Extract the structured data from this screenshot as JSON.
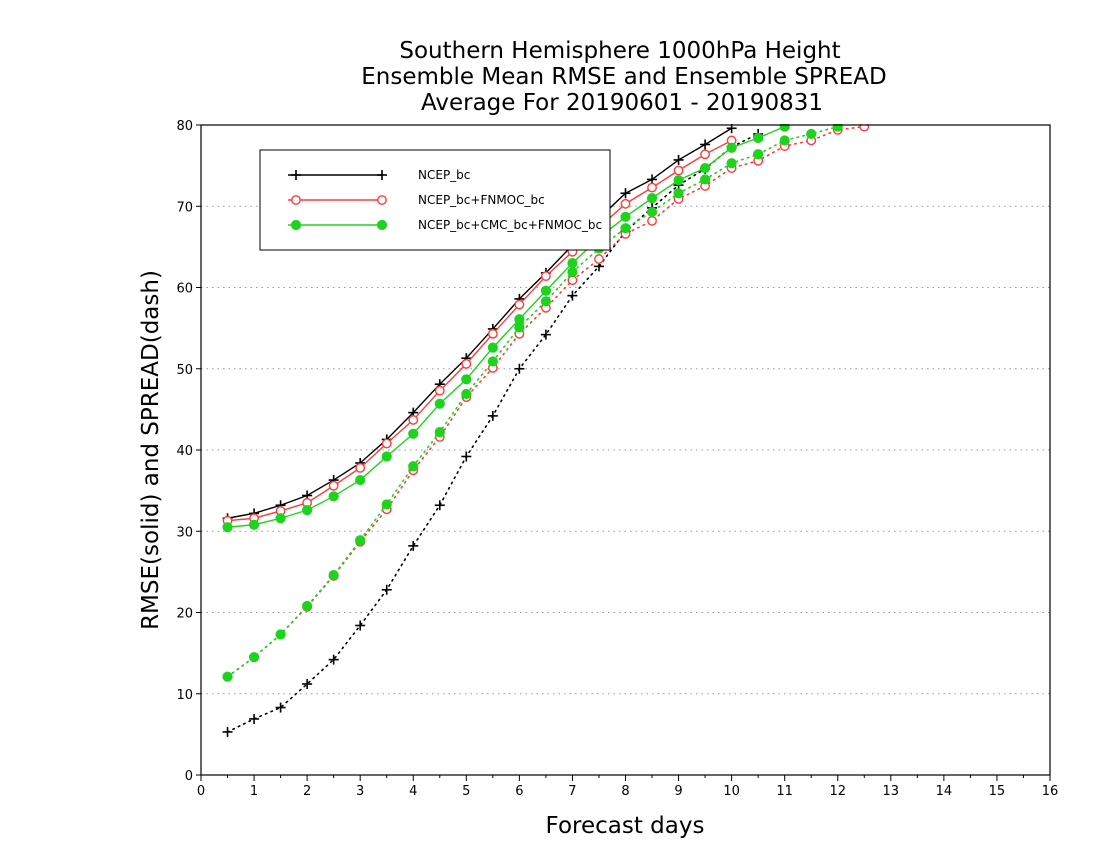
{
  "chart_data": {
    "type": "line",
    "title_lines": [
      "Southern Hemisphere 1000hPa Height",
      "Ensemble Mean RMSE and Ensemble SPREAD",
      "Average For 20190601 - 20190831"
    ],
    "xlabel": "Forecast days",
    "ylabel": "RMSE(solid) and SPREAD(dash)",
    "xlim": [
      0,
      16
    ],
    "ylim": [
      0,
      80
    ],
    "xticks": [
      "0",
      "1",
      "2",
      "3",
      "4",
      "5",
      "6",
      "7",
      "8",
      "9",
      "10",
      "11",
      "12",
      "13",
      "14",
      "15",
      "16"
    ],
    "yticks": [
      "0",
      "10",
      "20",
      "30",
      "40",
      "50",
      "60",
      "70",
      "80"
    ],
    "grid": "horizontal dotted",
    "legend_position": "upper-left",
    "series": [
      {
        "name": "NCEP_bc",
        "color": "#000000",
        "marker": "plus",
        "rmse": {
          "x": [
            0.5,
            1,
            1.5,
            2,
            2.5,
            3,
            3.5,
            4,
            4.5,
            5,
            5.5,
            6,
            6.5,
            7,
            7.5,
            8,
            8.5,
            9,
            9.5,
            10
          ],
          "y": [
            31.6,
            32.2,
            33.2,
            34.4,
            36.3,
            38.4,
            41.3,
            44.6,
            48.1,
            51.3,
            54.9,
            58.6,
            61.8,
            65.2,
            68.5,
            71.6,
            73.3,
            75.7,
            77.6,
            79.6
          ]
        },
        "spread": {
          "x": [
            0.5,
            1,
            1.5,
            2,
            2.5,
            3,
            3.5,
            4,
            4.5,
            5,
            5.5,
            6,
            6.5,
            7,
            7.5,
            8,
            8.5,
            9,
            9.5,
            10,
            10.5
          ],
          "y": [
            5.3,
            6.9,
            8.3,
            11.2,
            14.2,
            18.4,
            22.8,
            28.2,
            33.2,
            39.2,
            44.2,
            50.0,
            54.2,
            59.0,
            62.6,
            66.9,
            69.8,
            72.6,
            74.6,
            77.3,
            78.9
          ]
        }
      },
      {
        "name": "NCEP_bc+FNMOC_bc",
        "color": "#ff3b3b",
        "marker": "open-circle",
        "rmse": {
          "x": [
            0.5,
            1,
            1.5,
            2,
            2.5,
            3,
            3.5,
            4,
            4.5,
            5,
            5.5,
            6,
            6.5,
            7,
            7.5,
            8,
            8.5,
            9,
            9.5,
            10
          ],
          "y": [
            31.3,
            31.6,
            32.5,
            33.5,
            35.6,
            37.8,
            40.8,
            43.7,
            47.3,
            50.6,
            54.3,
            57.9,
            61.4,
            64.4,
            67.4,
            70.3,
            72.3,
            74.4,
            76.4,
            78.1
          ]
        },
        "spread": {
          "x": [
            0.5,
            1,
            1.5,
            2,
            2.5,
            3,
            3.5,
            4,
            4.5,
            5,
            5.5,
            6,
            6.5,
            7,
            7.5,
            8,
            8.5,
            9,
            9.5,
            10,
            10.5,
            11,
            11.5,
            12,
            12.5
          ],
          "y": [
            12.1,
            14.5,
            17.3,
            20.7,
            24.5,
            28.7,
            32.7,
            37.5,
            41.6,
            46.5,
            50.1,
            54.3,
            57.5,
            60.9,
            63.5,
            66.6,
            68.2,
            70.9,
            72.5,
            74.7,
            75.6,
            77.4,
            78.1,
            79.4,
            79.8
          ]
        }
      },
      {
        "name": "NCEP_bc+CMC_bc+FNMOC_bc",
        "color": "#1ed31e",
        "marker": "filled-circle",
        "rmse": {
          "x": [
            0.5,
            1,
            1.5,
            2,
            2.5,
            3,
            3.5,
            4,
            4.5,
            5,
            5.5,
            6,
            6.5,
            7,
            7.5,
            8,
            8.5,
            9,
            9.5,
            10,
            10.5,
            11
          ],
          "y": [
            30.5,
            30.8,
            31.6,
            32.6,
            34.3,
            36.3,
            39.2,
            42.0,
            45.7,
            48.7,
            52.6,
            56.1,
            59.6,
            63.0,
            66.1,
            68.7,
            71.0,
            73.2,
            74.7,
            77.2,
            78.4,
            79.8
          ]
        },
        "spread": {
          "x": [
            0.5,
            1,
            1.5,
            2,
            2.5,
            3,
            3.5,
            4,
            4.5,
            5,
            5.5,
            6,
            6.5,
            7,
            7.5,
            8,
            8.5,
            9,
            9.5,
            10,
            10.5,
            11,
            11.5,
            12
          ],
          "y": [
            12.1,
            14.5,
            17.3,
            20.8,
            24.6,
            28.9,
            33.3,
            38.0,
            42.2,
            46.9,
            50.9,
            55.1,
            58.3,
            61.9,
            64.8,
            67.3,
            69.3,
            71.6,
            73.3,
            75.3,
            76.4,
            78.1,
            78.9,
            79.8
          ]
        }
      }
    ]
  }
}
